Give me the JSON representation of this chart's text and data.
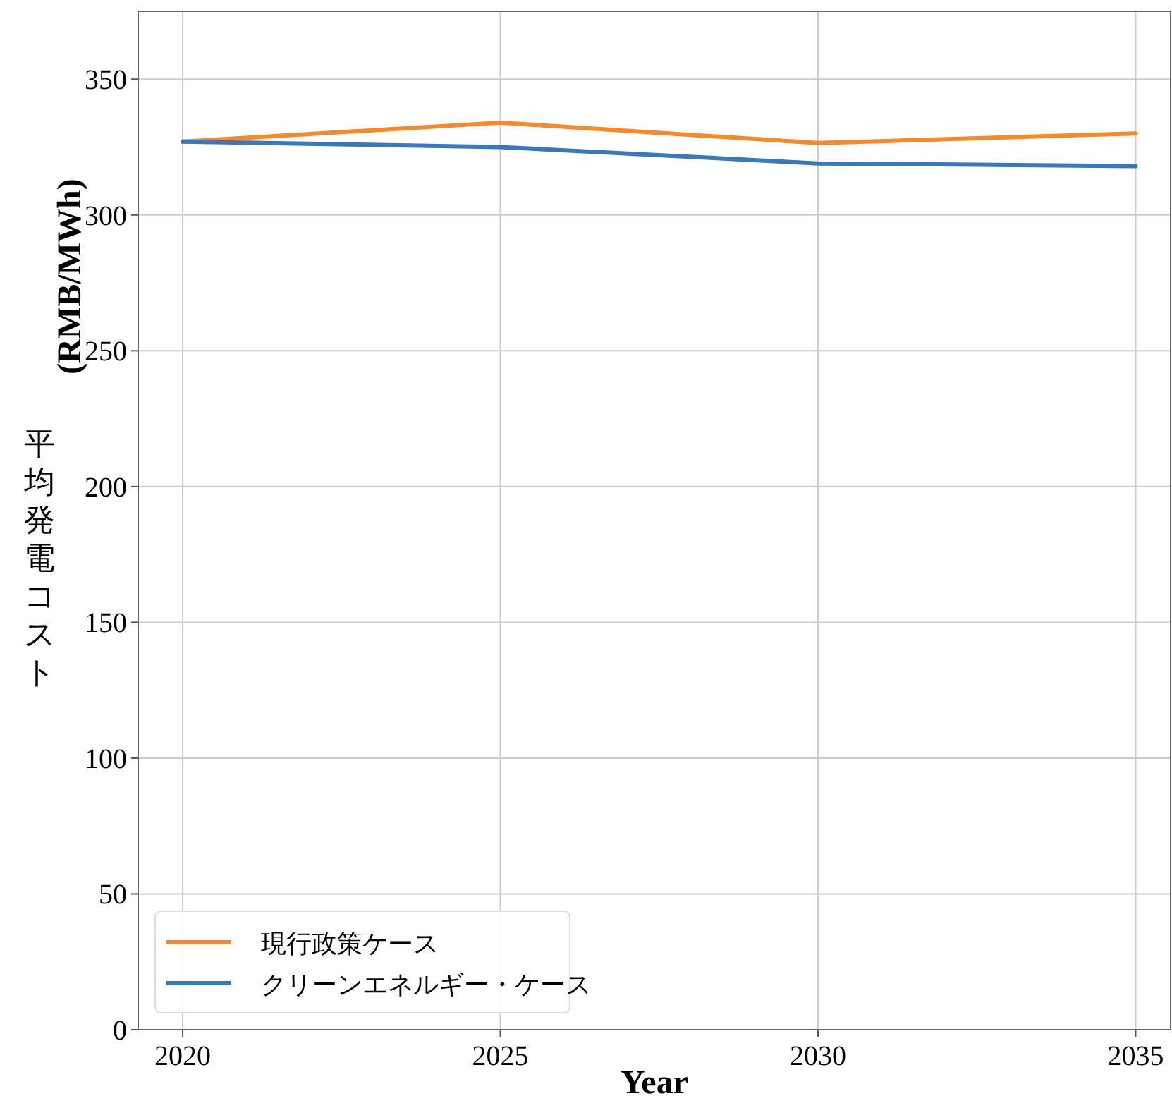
{
  "chart_data": {
    "type": "line",
    "xlabel": "Year",
    "ylabel": "平均発電コスト\n(RMB/MWh)",
    "x": [
      2020,
      2025,
      2030,
      2035
    ],
    "series": [
      {
        "name": "現行政策ケース",
        "color": "#f28a30",
        "values": [
          327,
          334,
          326.5,
          330
        ]
      },
      {
        "name": "クリーンエネルギー・ケース",
        "color": "#3a78b8",
        "values": [
          327,
          325,
          319,
          318
        ]
      }
    ],
    "xlim": [
      2019.3,
      2035.55
    ],
    "xticks": [
      2020,
      2025,
      2030,
      2035
    ],
    "ylim": [
      0,
      375
    ],
    "yticks": [
      0,
      50,
      100,
      150,
      200,
      250,
      300,
      350
    ],
    "grid": true,
    "legend": "bottom left",
    "line_style": "solid",
    "marker": "none"
  }
}
